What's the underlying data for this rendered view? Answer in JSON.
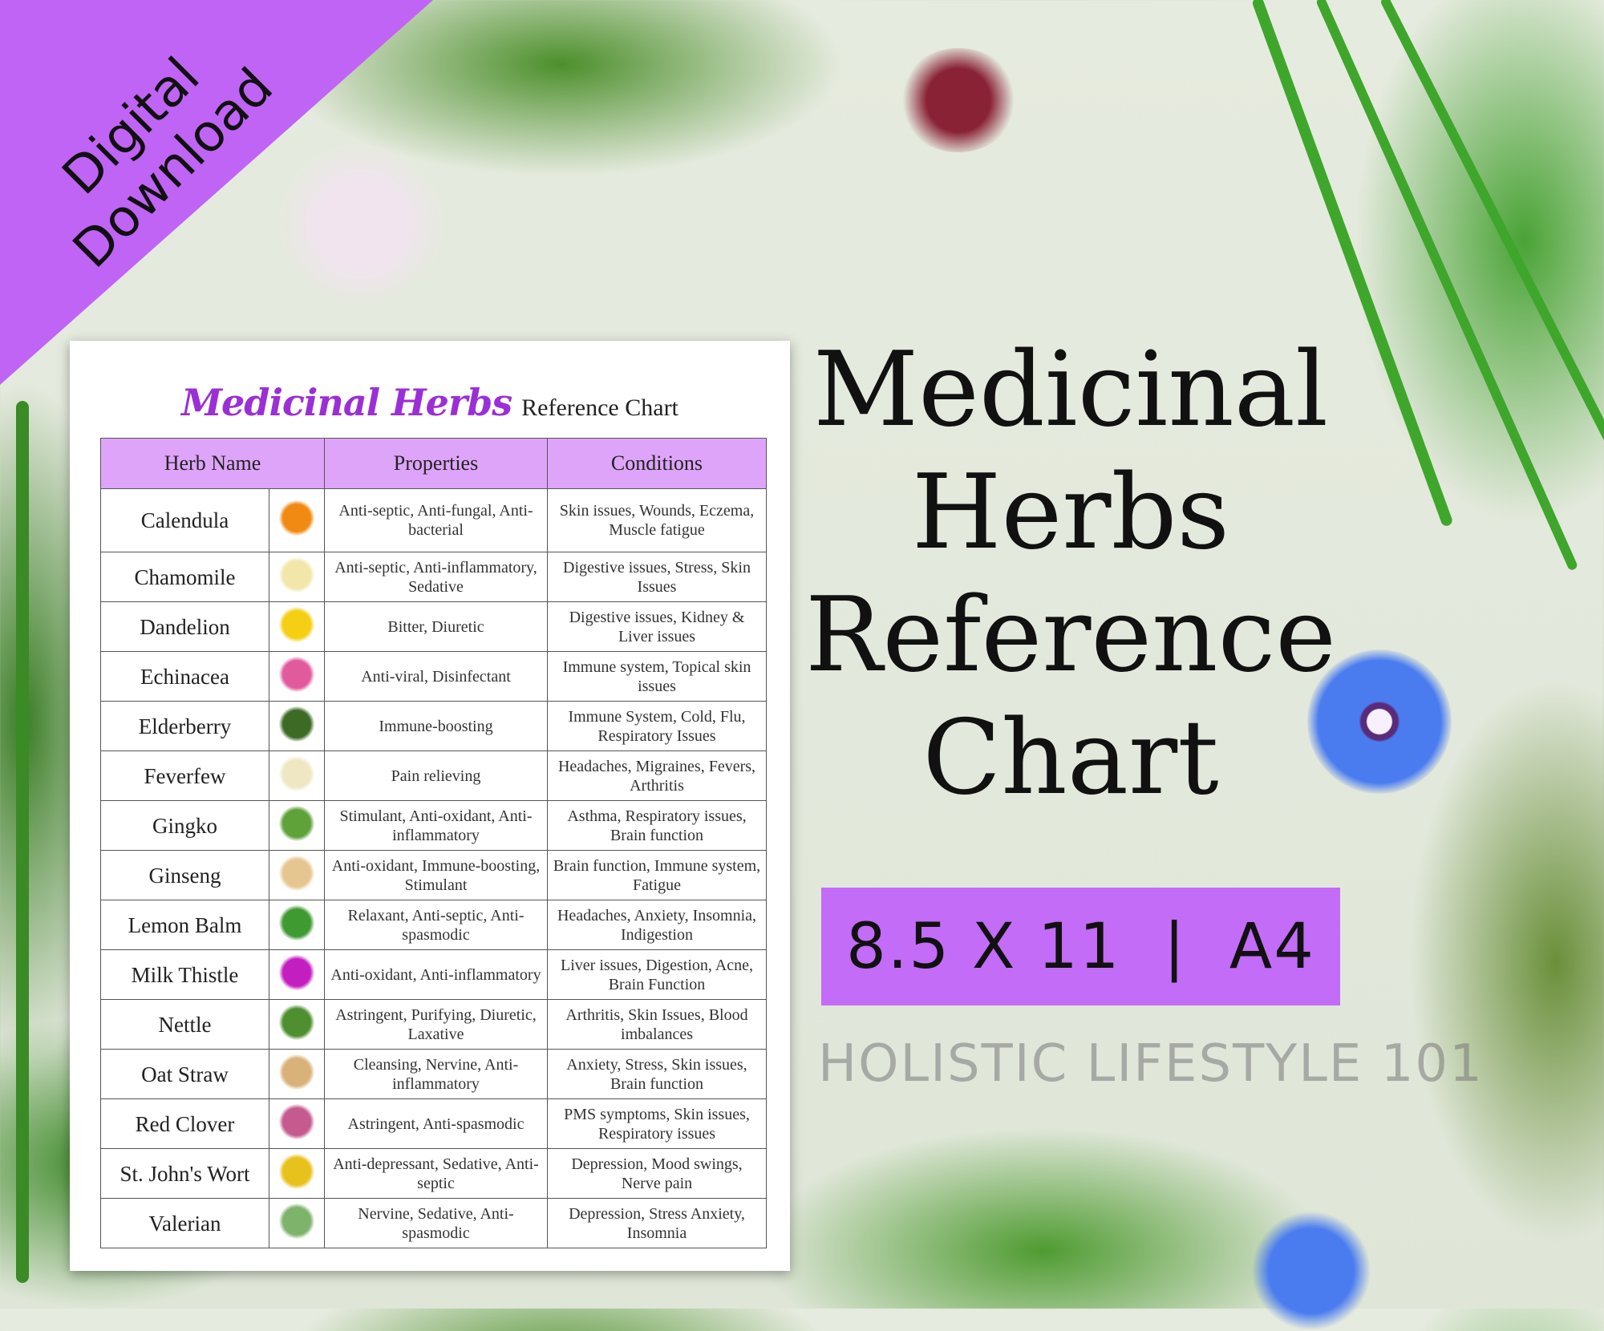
{
  "banner": {
    "line1": "Digital",
    "line2": "Download",
    "color": "#c064f5"
  },
  "card": {
    "title_script": "Medicinal Herbs",
    "title_rest": "Reference Chart",
    "headers": [
      "Herb Name",
      "Properties",
      "Conditions"
    ],
    "header_color": "#dea4f9",
    "rows": [
      {
        "name": "Calendula",
        "properties": "Anti-septic, Anti-fungal, Anti-bacterial",
        "conditions": "Skin issues, Wounds, Eczema, Muscle fatigue",
        "icon": "calendula-flower-icon",
        "color": "#f08a12"
      },
      {
        "name": "Chamomile",
        "properties": "Anti-septic, Anti-inflammatory, Sedative",
        "conditions": "Digestive issues, Stress, Skin Issues",
        "icon": "chamomile-flower-icon",
        "color": "#f2e6a8"
      },
      {
        "name": "Dandelion",
        "properties": "Bitter, Diuretic",
        "conditions": "Digestive issues, Kidney & Liver issues",
        "icon": "dandelion-flower-icon",
        "color": "#f5cf14"
      },
      {
        "name": "Echinacea",
        "properties": "Anti-viral, Disinfectant",
        "conditions": "Immune system, Topical skin issues",
        "icon": "echinacea-flower-icon",
        "color": "#e05a9c"
      },
      {
        "name": "Elderberry",
        "properties": "Immune-boosting",
        "conditions": "Immune System, Cold, Flu, Respiratory Issues",
        "icon": "elderberry-icon",
        "color": "#3d6b25"
      },
      {
        "name": "Feverfew",
        "properties": "Pain relieving",
        "conditions": "Headaches, Migraines, Fevers, Arthritis",
        "icon": "feverfew-flower-icon",
        "color": "#efe7c4"
      },
      {
        "name": "Gingko",
        "properties": "Stimulant, Anti-oxidant, Anti-inflammatory",
        "conditions": "Asthma, Respiratory issues, Brain function",
        "icon": "gingko-leaf-icon",
        "color": "#5fa23a"
      },
      {
        "name": "Ginseng",
        "properties": "Anti-oxidant, Immune-boosting, Stimulant",
        "conditions": "Brain function, Immune system, Fatigue",
        "icon": "ginseng-root-icon",
        "color": "#e6c690"
      },
      {
        "name": "Lemon Balm",
        "properties": "Relaxant, Anti-septic, Anti-spasmodic",
        "conditions": "Headaches, Anxiety, Insomnia, Indigestion",
        "icon": "lemon-balm-leaf-icon",
        "color": "#3f9a32"
      },
      {
        "name": "Milk Thistle",
        "properties": "Anti-oxidant, Anti-inflammatory",
        "conditions": "Liver issues, Digestion, Acne, Brain Function",
        "icon": "milk-thistle-flower-icon",
        "color": "#c21ec0"
      },
      {
        "name": "Nettle",
        "properties": "Astringent, Purifying, Diuretic, Laxative",
        "conditions": "Arthritis, Skin Issues, Blood imbalances",
        "icon": "nettle-leaf-icon",
        "color": "#4e8f2f"
      },
      {
        "name": "Oat Straw",
        "properties": "Cleansing, Nervine, Anti-inflammatory",
        "conditions": "Anxiety, Stress, Skin issues, Brain function",
        "icon": "oat-straw-icon",
        "color": "#d9b27a"
      },
      {
        "name": "Red Clover",
        "properties": "Astringent, Anti-spasmodic",
        "conditions": "PMS symptoms, Skin issues, Respiratory issues",
        "icon": "red-clover-flower-icon",
        "color": "#c45a8e"
      },
      {
        "name": "St. John's Wort",
        "properties": "Anti-depressant, Sedative, Anti-septic",
        "conditions": "Depression, Mood swings, Nerve pain",
        "icon": "st-johns-wort-flower-icon",
        "color": "#e8c21c"
      },
      {
        "name": "Valerian",
        "properties": "Nervine, Sedative, Anti-spasmodic",
        "conditions": "Depression, Stress Anxiety, Insomnia",
        "icon": "valerian-plant-icon",
        "color": "#7db36a"
      }
    ],
    "watermark": "HOLISTIC LIFESTYLE 101"
  },
  "hero": {
    "line1": "Medicinal",
    "line2": "Herbs",
    "line3": "Reference",
    "line4": "Chart"
  },
  "size_box": {
    "text": "8.5 X 11  |  A4",
    "color": "#c26cf7"
  }
}
